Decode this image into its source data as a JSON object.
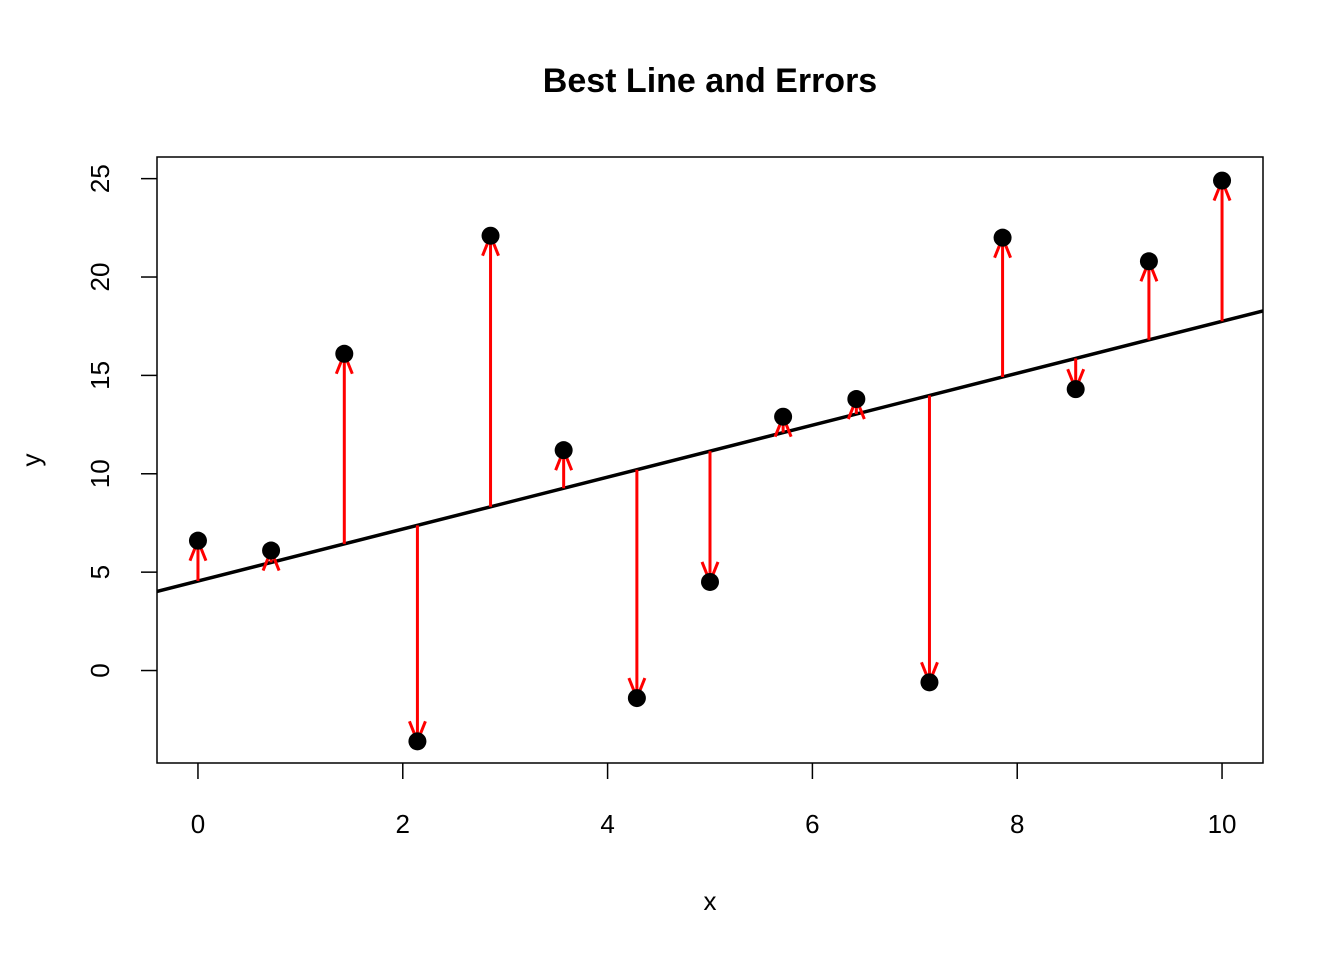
{
  "chart_data": {
    "type": "scatter",
    "title": "Best Line and Errors",
    "xlabel": "x",
    "ylabel": "y",
    "xlim": [
      -0.4,
      10.4
    ],
    "ylim": [
      -4.7,
      26.1
    ],
    "xticks": [
      0,
      2,
      4,
      6,
      8,
      10
    ],
    "yticks": [
      0,
      5,
      10,
      15,
      20,
      25
    ],
    "grid": false,
    "points": [
      {
        "x": 0.0,
        "y": 6.6
      },
      {
        "x": 0.714,
        "y": 6.1
      },
      {
        "x": 1.429,
        "y": 16.1
      },
      {
        "x": 2.143,
        "y": -3.6
      },
      {
        "x": 2.857,
        "y": 22.1
      },
      {
        "x": 3.571,
        "y": 11.2
      },
      {
        "x": 4.286,
        "y": -1.4
      },
      {
        "x": 5.0,
        "y": 4.5
      },
      {
        "x": 5.714,
        "y": 12.9
      },
      {
        "x": 6.429,
        "y": 13.8
      },
      {
        "x": 7.143,
        "y": -0.6
      },
      {
        "x": 7.857,
        "y": 22.0
      },
      {
        "x": 8.571,
        "y": 14.3
      },
      {
        "x": 9.286,
        "y": 20.8
      },
      {
        "x": 10.0,
        "y": 24.9
      }
    ],
    "fit_line": {
      "intercept": 4.55,
      "slope": 1.32
    },
    "colors": {
      "points": "#000000",
      "line": "#000000",
      "errors": "#ff0000"
    }
  }
}
